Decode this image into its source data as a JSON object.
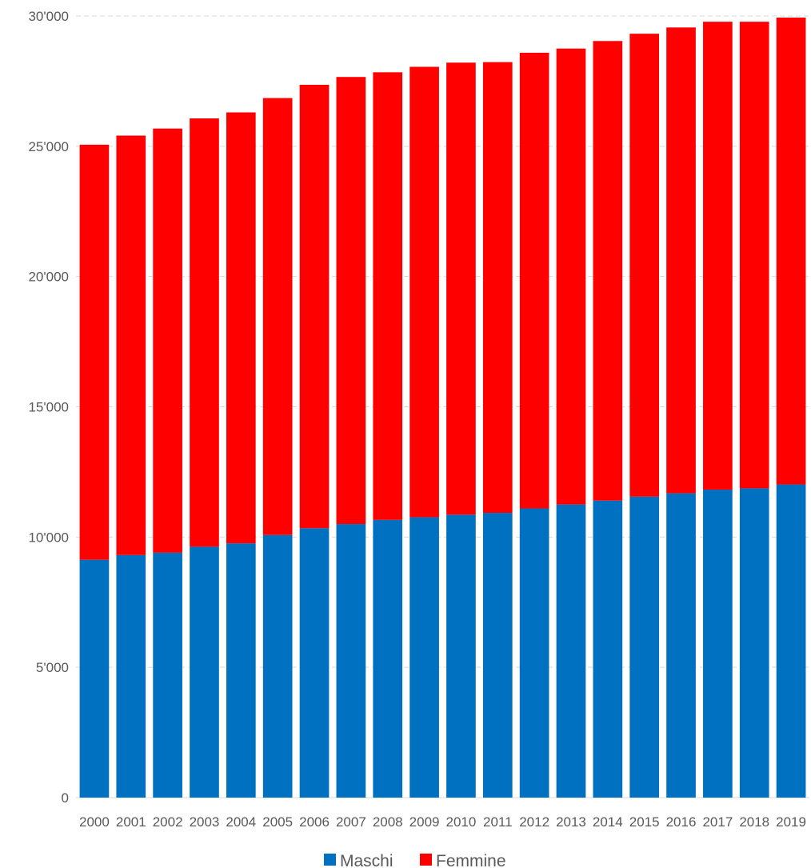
{
  "chart_data": {
    "type": "bar",
    "stacked": true,
    "categories": [
      "2000",
      "2001",
      "2002",
      "2003",
      "2004",
      "2005",
      "2006",
      "2007",
      "2008",
      "2009",
      "2010",
      "2011",
      "2012",
      "2013",
      "2014",
      "2015",
      "2016",
      "2017",
      "2018",
      "2019"
    ],
    "series": [
      {
        "name": "Maschi",
        "color": "#0070c0",
        "values": [
          9130,
          9310,
          9400,
          9630,
          9760,
          10080,
          10340,
          10500,
          10660,
          10760,
          10860,
          10930,
          11100,
          11250,
          11400,
          11550,
          11680,
          11820,
          11870,
          12020
        ]
      },
      {
        "name": "Femmine",
        "color": "#ff0000",
        "values": [
          15930,
          16100,
          16280,
          16440,
          16540,
          16770,
          17020,
          17160,
          17180,
          17290,
          17350,
          17300,
          17490,
          17500,
          17640,
          17770,
          17880,
          17960,
          17910,
          17920
        ]
      }
    ],
    "ylim": [
      0,
      30000
    ],
    "yticks": [
      0,
      5000,
      10000,
      15000,
      20000,
      25000,
      30000
    ],
    "ytick_labels": [
      "0",
      "5'000",
      "10'000",
      "15'000",
      "20'000",
      "25'000",
      "30'000"
    ],
    "grid": true,
    "legend_position": "bottom-center"
  }
}
